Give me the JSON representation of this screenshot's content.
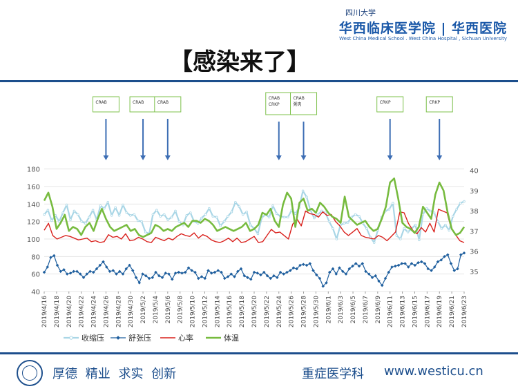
{
  "header": {
    "logo_cn_small": "四川大学",
    "logo_cn_large": "华西临床医学院 | 华西医院",
    "logo_en": "West China Medical School . West China Hospital , Sichuan University"
  },
  "slide": {
    "title": "【感染来了】"
  },
  "footer": {
    "motto": "厚德 精业 求实 创新",
    "department": "重症医学科",
    "url": "www.westicu.cn"
  },
  "colors": {
    "brand": "#1c4e8c",
    "systolic": "#a9d6e6",
    "diastolic": "#1f5f9e",
    "heart_rate": "#d9201c",
    "temperature": "#77bb3f"
  },
  "chart_data": {
    "type": "line",
    "x_tick_labels": [
      "2019/4/16",
      "2019/4/18",
      "2019/4/20",
      "2019/4/22",
      "2019/4/24",
      "2019/4/26",
      "2019/4/28",
      "2019/4/30",
      "2019/5/2",
      "2019/5/4",
      "2019/5/6",
      "2019/5/8",
      "2019/5/10",
      "2019/5/12",
      "2019/5/14",
      "2019/5/16",
      "2019/5/18",
      "2019/5/20",
      "2019/5/22",
      "2019/5/24",
      "2019/5/26",
      "2019/5/28",
      "2019/5/30",
      "2019/6/1",
      "2019/6/3",
      "2019/6/5",
      "2019/6/7",
      "2019/6/9",
      "2019/6/11",
      "2019/6/13",
      "2019/6/15",
      "2019/6/17",
      "2019/6/19",
      "2019/6/21",
      "2019/6/23"
    ],
    "y_left": {
      "ticks": [
        40,
        60,
        80,
        100,
        120,
        140,
        160,
        180
      ],
      "range": [
        40,
        190
      ]
    },
    "y_right": {
      "ticks": [
        35,
        36,
        37,
        38,
        39,
        40
      ],
      "range": [
        34,
        40.5
      ]
    },
    "grid": true,
    "legend_position": "bottom",
    "series": [
      {
        "name": "收缩压",
        "axis": "left",
        "values": [
          128,
          133,
          121,
          127,
          120,
          130,
          139,
          122,
          132,
          128,
          120,
          118,
          125,
          133,
          122,
          138,
          135,
          142,
          127,
          136,
          127,
          139,
          130,
          127,
          128,
          121,
          120,
          108,
          106,
          128,
          133,
          126,
          128,
          122,
          125,
          132,
          120,
          116,
          127,
          130,
          120,
          118,
          124,
          128,
          135,
          126,
          125,
          115,
          120,
          126,
          131,
          142,
          137,
          128,
          131,
          116,
          112,
          106,
          124,
          128,
          125,
          138,
          129,
          126,
          125,
          125,
          133,
          129,
          136,
          155,
          148,
          133,
          124,
          128,
          132,
          130,
          120,
          112,
          100,
          116,
          118,
          119,
          125,
          128,
          126,
          118,
          112,
          102,
          96,
          110,
          125,
          132,
          134,
          141,
          104,
          100,
          112,
          108,
          112,
          116,
          99,
          128,
          135,
          132,
          130,
          120,
          112,
          116,
          110,
          126,
          134,
          141,
          143
        ]
      },
      {
        "name": "舒张压",
        "axis": "left",
        "values": [
          62,
          68,
          79,
          81,
          70,
          63,
          65,
          60,
          61,
          63,
          63,
          60,
          56,
          60,
          63,
          62,
          66,
          70,
          74,
          68,
          63,
          64,
          60,
          63,
          60,
          66,
          70,
          64,
          56,
          50,
          60,
          58,
          55,
          56,
          62,
          58,
          56,
          61,
          60,
          54,
          61,
          62,
          61,
          62,
          67,
          64,
          62,
          55,
          57,
          55,
          64,
          61,
          62,
          64,
          62,
          55,
          57,
          60,
          57,
          63,
          66,
          58,
          56,
          54,
          62,
          61,
          59,
          62,
          58,
          55,
          58,
          56,
          62,
          60,
          62,
          64,
          67,
          66,
          70,
          71,
          70,
          72,
          64,
          59,
          55,
          46,
          50,
          62,
          66,
          60,
          67,
          63,
          60,
          66,
          69,
          72,
          69,
          72,
          63,
          60,
          56,
          58,
          52,
          47,
          55,
          62,
          68,
          69,
          70,
          72,
          72,
          68,
          72,
          70,
          73,
          74,
          72,
          66,
          64,
          68,
          74,
          76,
          80,
          82,
          72,
          64,
          66,
          82,
          84
        ]
      },
      {
        "name": "心率",
        "axis": "left",
        "values": [
          110,
          118,
          104,
          100,
          102,
          104,
          103,
          101,
          99,
          100,
          101,
          97,
          98,
          96,
          97,
          105,
          102,
          103,
          100,
          106,
          98,
          99,
          102,
          100,
          97,
          96,
          102,
          100,
          98,
          101,
          99,
          103,
          106,
          104,
          103,
          107,
          101,
          105,
          103,
          99,
          97,
          96,
          98,
          101,
          97,
          101,
          96,
          97,
          100,
          103,
          96,
          97,
          104,
          111,
          107,
          108,
          104,
          100,
          117,
          123,
          115,
          132,
          129,
          128,
          125,
          131,
          127,
          128,
          120,
          115,
          108,
          104,
          108,
          112,
          104,
          102,
          101,
          100,
          104,
          102,
          98,
          103,
          108,
          131,
          130,
          118,
          110,
          106,
          113,
          108,
          118,
          108,
          134,
          132,
          130,
          112,
          105,
          98,
          96
        ]
      },
      {
        "name": "体温",
        "axis": "right",
        "values": [
          38.5,
          38.9,
          38.2,
          37.1,
          37.4,
          37.8,
          37.0,
          37.2,
          37.1,
          36.8,
          37.2,
          37.4,
          37.0,
          37.6,
          38.1,
          37.6,
          37.2,
          37.0,
          37.1,
          37.2,
          37.3,
          37.0,
          37.1,
          36.8,
          36.7,
          36.8,
          36.9,
          37.3,
          37.2,
          37.0,
          37.1,
          37.0,
          37.2,
          37.3,
          37.4,
          37.2,
          37.5,
          37.5,
          37.4,
          37.6,
          37.5,
          37.3,
          37.0,
          37.1,
          37.2,
          37.1,
          37.0,
          37.1,
          37.2,
          37.4,
          37.0,
          37.1,
          37.3,
          37.9,
          37.8,
          38.1,
          37.5,
          37.2,
          38.3,
          38.9,
          38.6,
          37.2,
          38.4,
          38.6,
          38.0,
          38.1,
          37.9,
          38.4,
          38.2,
          37.9,
          37.7,
          37.6,
          37.4,
          38.7,
          37.7,
          37.5,
          37.3,
          37.4,
          37.5,
          37.2,
          37.0,
          37.1,
          37.6,
          38.2,
          39.4,
          39.6,
          38.6,
          37.4,
          37.2,
          37.1,
          36.9,
          37.2,
          38.2,
          37.9,
          37.6,
          38.8,
          39.4,
          39.0,
          37.9,
          37.1,
          36.8,
          36.9,
          37.2
        ]
      }
    ],
    "annotations": [
      {
        "text": "CRAB",
        "date_index": 5
      },
      {
        "text": "CRAB",
        "date_index": 8
      },
      {
        "text": "CRAB",
        "date_index": 10
      },
      {
        "text": "CRAB\nCRKP",
        "date_index": 19
      },
      {
        "text": "CRAB\n粥肉",
        "date_index": 21
      },
      {
        "text": "CRKP",
        "date_index": 28
      },
      {
        "text": "CRKP",
        "date_index": 32
      }
    ]
  }
}
